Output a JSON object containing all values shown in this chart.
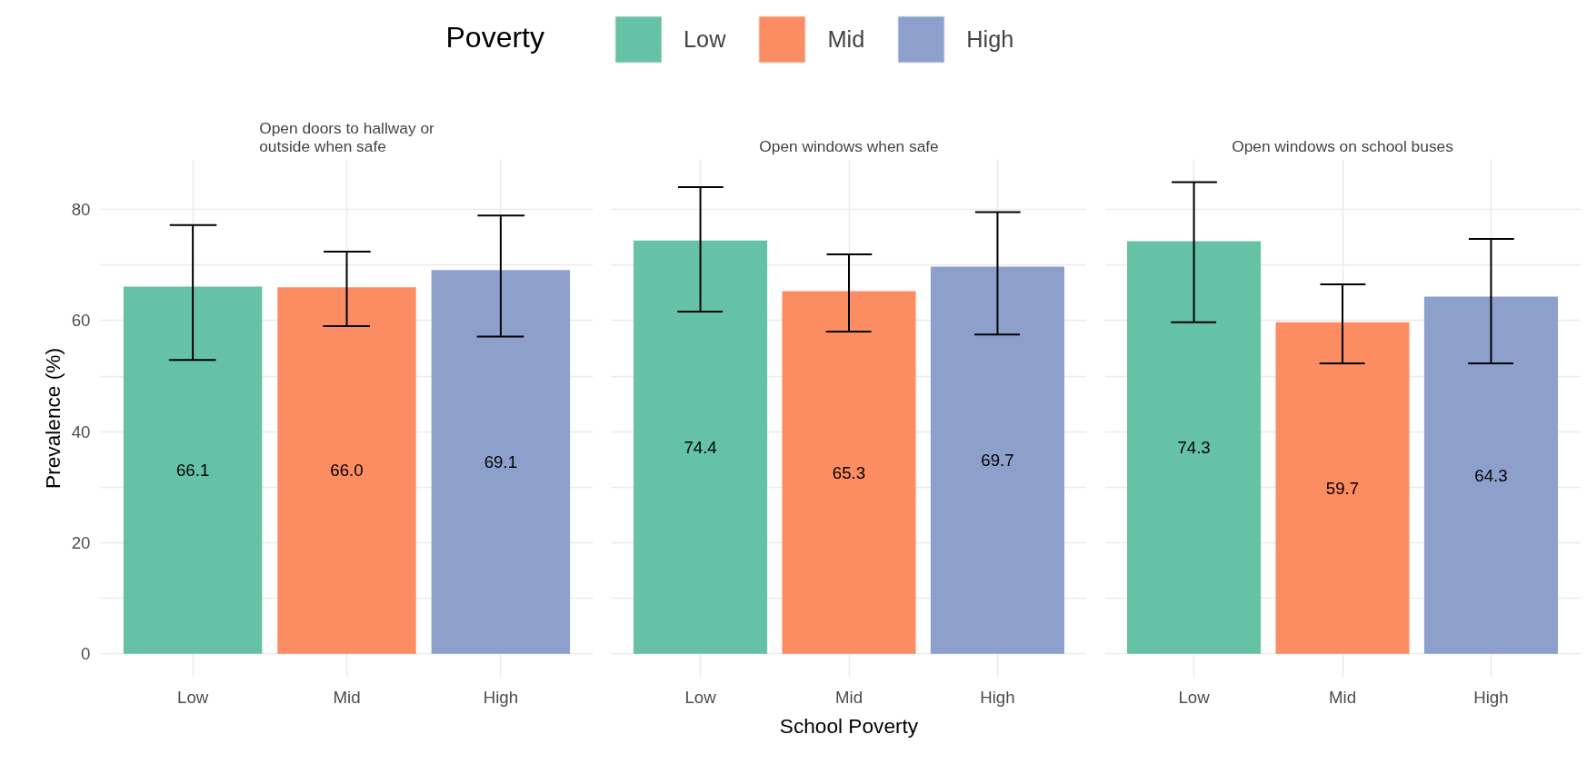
{
  "chart_data": [
    {
      "type": "bar",
      "title": "Open doors to hallway or\noutside when safe",
      "ylabel": "Prevalence (%)",
      "legend_title": "Poverty",
      "legend": "top",
      "categories": [
        "Low",
        "Mid",
        "High"
      ],
      "series": [
        {
          "name": "Low",
          "color": "#66c2a5",
          "values": [
            66.1,
            null,
            null
          ],
          "errors": [
            [
              52.9,
              77.2
            ],
            null,
            null
          ],
          "value_labels": [
            "66.1",
            null,
            null
          ]
        },
        {
          "name": "Mid",
          "color": "#fc8d62",
          "values": [
            null,
            66.0,
            null
          ],
          "errors": [
            null,
            [
              59.0,
              72.4
            ],
            null
          ],
          "value_labels": [
            null,
            "66.0",
            null
          ]
        },
        {
          "name": "High",
          "color": "#8da0cb",
          "values": [
            null,
            null,
            69.1
          ],
          "errors": [
            null,
            null,
            [
              57.1,
              78.9
            ]
          ],
          "value_labels": [
            null,
            null,
            "69.1"
          ]
        }
      ],
      "ylim": [
        -4.2,
        89
      ],
      "yticks": [
        0,
        {
          "value": 10,
          "label": null
        },
        20,
        {
          "value": 30,
          "label": null
        },
        40,
        {
          "value": 50,
          "label": null
        },
        60,
        {
          "value": 70,
          "label": null
        },
        80
      ],
      "grid": true
    },
    {
      "type": "bar",
      "title": "Open windows when safe",
      "xlabel": "School Poverty",
      "categories": [
        "Low",
        "Mid",
        "High"
      ],
      "series": [
        {
          "name": "Low",
          "color": "#66c2a5",
          "values": [
            74.4,
            null,
            null
          ],
          "errors": [
            [
              61.6,
              84.0
            ],
            null,
            null
          ],
          "value_labels": [
            "74.4",
            null,
            null
          ]
        },
        {
          "name": "Mid",
          "color": "#fc8d62",
          "values": [
            null,
            65.3,
            null
          ],
          "errors": [
            null,
            [
              58.0,
              71.9
            ],
            null
          ],
          "value_labels": [
            null,
            "65.3",
            null
          ]
        },
        {
          "name": "High",
          "color": "#8da0cb",
          "values": [
            null,
            null,
            69.7
          ],
          "errors": [
            null,
            null,
            [
              57.5,
              79.5
            ]
          ],
          "value_labels": [
            null,
            null,
            "69.7"
          ]
        }
      ],
      "ylim": [
        -4.2,
        89
      ],
      "yticks": [
        0,
        {
          "value": 10,
          "label": null
        },
        20,
        {
          "value": 30,
          "label": null
        },
        40,
        {
          "value": 50,
          "label": null
        },
        60,
        {
          "value": 70,
          "label": null
        },
        80
      ],
      "grid": true,
      "tick_labels": "x"
    },
    {
      "type": "bar",
      "title": "Open windows on school buses",
      "categories": [
        "Low",
        "Mid",
        "High"
      ],
      "series": [
        {
          "name": "Low",
          "color": "#66c2a5",
          "values": [
            74.3,
            null,
            null
          ],
          "errors": [
            [
              59.7,
              84.9
            ],
            null,
            null
          ],
          "value_labels": [
            "74.3",
            null,
            null
          ]
        },
        {
          "name": "Mid",
          "color": "#fc8d62",
          "values": [
            null,
            59.7,
            null
          ],
          "errors": [
            null,
            [
              52.3,
              66.5
            ],
            null
          ],
          "value_labels": [
            null,
            "59.7",
            null
          ]
        },
        {
          "name": "High",
          "color": "#8da0cb",
          "values": [
            null,
            null,
            64.3
          ],
          "errors": [
            null,
            null,
            [
              52.3,
              74.7
            ]
          ],
          "value_labels": [
            null,
            null,
            "64.3"
          ]
        }
      ],
      "ylim": [
        -4.2,
        89
      ],
      "yticks": [
        0,
        {
          "value": 10,
          "label": null
        },
        20,
        {
          "value": 30,
          "label": null
        },
        40,
        {
          "value": 50,
          "label": null
        },
        60,
        {
          "value": 70,
          "label": null
        },
        80
      ],
      "grid": true,
      "tick_labels": "x"
    }
  ]
}
